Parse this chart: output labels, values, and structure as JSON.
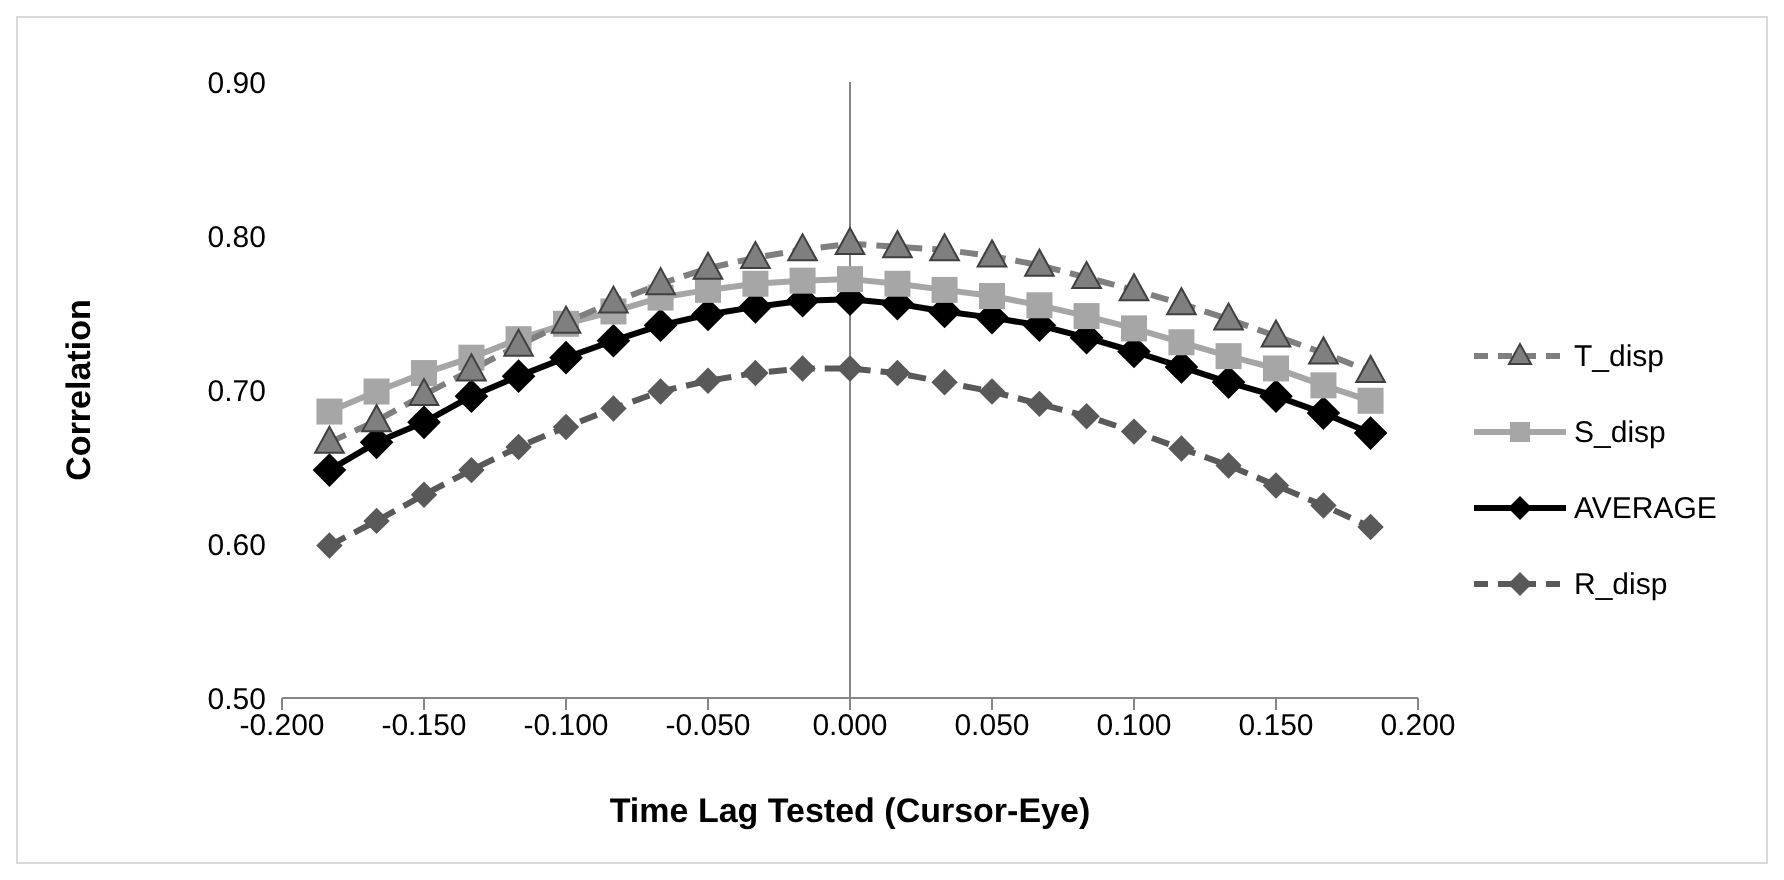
{
  "chart_data": {
    "type": "line",
    "xlabel": "Time  Lag Tested (Cursor-Eye)",
    "ylabel": "Correlation",
    "x": [
      -0.1833,
      -0.1667,
      -0.15,
      -0.1333,
      -0.1167,
      -0.1,
      -0.0833,
      -0.0667,
      -0.05,
      -0.0333,
      -0.0167,
      0,
      0.0167,
      0.0333,
      0.05,
      0.0667,
      0.0833,
      0.1,
      0.1167,
      0.1333,
      0.15,
      0.1667,
      0.1833
    ],
    "series": [
      {
        "name": "T_disp",
        "color": "#7f7f7f",
        "marker": "triangle",
        "line_style": "dashed",
        "values": [
          0.666,
          0.68,
          0.697,
          0.713,
          0.729,
          0.744,
          0.757,
          0.769,
          0.779,
          0.786,
          0.791,
          0.795,
          0.793,
          0.791,
          0.787,
          0.781,
          0.773,
          0.765,
          0.756,
          0.746,
          0.735,
          0.724,
          0.712
        ]
      },
      {
        "name": "S_disp",
        "color": "#a6a6a6",
        "marker": "square",
        "line_style": "solid",
        "values": [
          0.686,
          0.699,
          0.711,
          0.721,
          0.733,
          0.743,
          0.751,
          0.76,
          0.765,
          0.769,
          0.771,
          0.772,
          0.769,
          0.765,
          0.761,
          0.755,
          0.748,
          0.74,
          0.731,
          0.722,
          0.714,
          0.703,
          0.693
        ]
      },
      {
        "name": "AVERAGE",
        "color": "#000000",
        "marker": "diamond",
        "line_style": "solid",
        "values": [
          0.648,
          0.666,
          0.679,
          0.696,
          0.709,
          0.721,
          0.732,
          0.742,
          0.749,
          0.754,
          0.758,
          0.759,
          0.756,
          0.751,
          0.747,
          0.742,
          0.734,
          0.725,
          0.715,
          0.705,
          0.696,
          0.685,
          0.672
        ]
      },
      {
        "name": "R_disp",
        "color": "#595959",
        "marker": "diamond",
        "line_style": "dashed",
        "values": [
          0.599,
          0.615,
          0.632,
          0.648,
          0.663,
          0.676,
          0.688,
          0.699,
          0.706,
          0.711,
          0.714,
          0.714,
          0.711,
          0.705,
          0.699,
          0.691,
          0.683,
          0.673,
          0.662,
          0.651,
          0.638,
          0.625,
          0.611
        ]
      }
    ],
    "xlim": [
      -0.2,
      0.2
    ],
    "xticks": [
      {
        "value": -0.2,
        "label": "-0.200"
      },
      {
        "value": -0.15,
        "label": "-0.150"
      },
      {
        "value": -0.1,
        "label": "-0.100"
      },
      {
        "value": -0.05,
        "label": "-0.050"
      },
      {
        "value": 0,
        "label": "0.000"
      },
      {
        "value": 0.05,
        "label": "0.050"
      },
      {
        "value": 0.1,
        "label": "0.100"
      },
      {
        "value": 0.15,
        "label": "0.150"
      },
      {
        "value": 0.2,
        "label": "0.200"
      }
    ],
    "ylim": [
      0.5,
      0.9
    ],
    "yticks": [
      {
        "value": 0.5,
        "label": "0.50"
      },
      {
        "value": 0.6,
        "label": "0.60"
      },
      {
        "value": 0.7,
        "label": "0.70"
      },
      {
        "value": 0.8,
        "label": "0.80"
      },
      {
        "value": 0.9,
        "label": "0.90"
      }
    ],
    "ref_lines": [
      {
        "axis": "x",
        "value": 0,
        "color": "#868686"
      }
    ],
    "grid": false,
    "legend": "right"
  }
}
